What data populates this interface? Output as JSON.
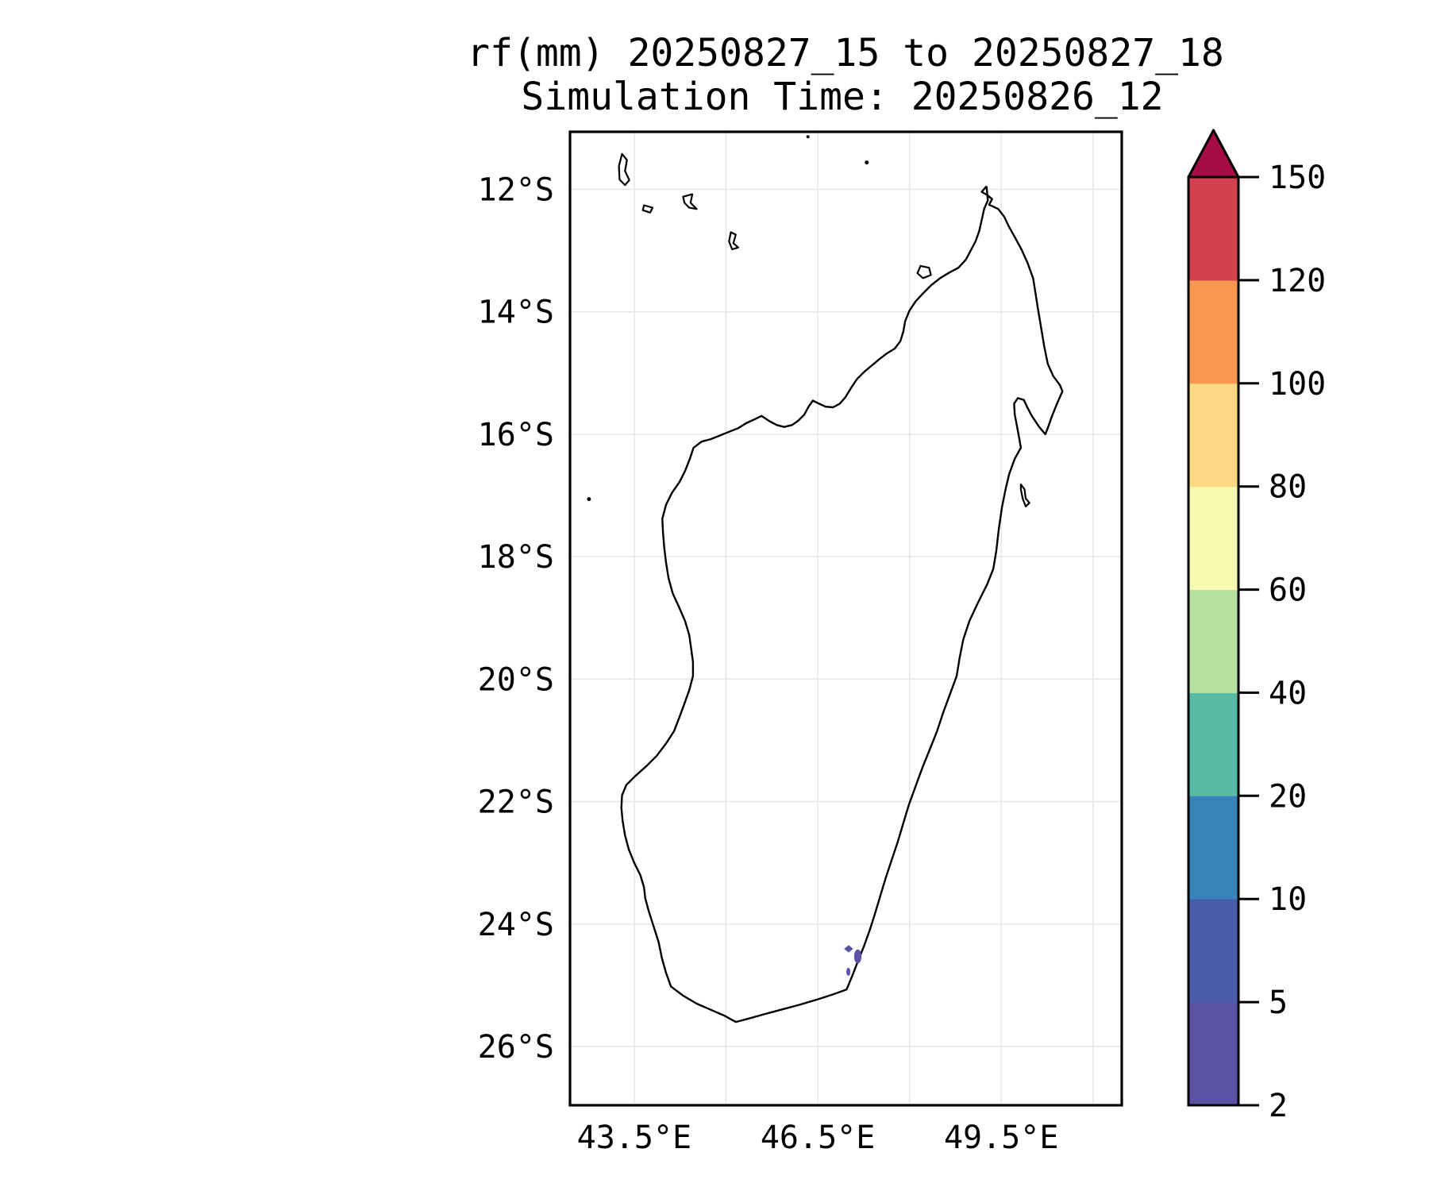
{
  "title": {
    "line1": "rf(mm) 20250827_15 to 20250827_18",
    "line2": "Simulation Time: 20250826_12"
  },
  "axes": {
    "lat_ticks": [
      {
        "label": "12°S",
        "lat": 12
      },
      {
        "label": "14°S",
        "lat": 14
      },
      {
        "label": "16°S",
        "lat": 16
      },
      {
        "label": "18°S",
        "lat": 18
      },
      {
        "label": "20°S",
        "lat": 20
      },
      {
        "label": "22°S",
        "lat": 22
      },
      {
        "label": "24°S",
        "lat": 24
      },
      {
        "label": "26°S",
        "lat": 26
      }
    ],
    "lon_ticks": [
      {
        "label": "43.5°E",
        "lon": 43.5
      },
      {
        "label": "46.5°E",
        "lon": 46.5
      },
      {
        "label": "49.5°E",
        "lon": 49.5
      }
    ],
    "lat_gridlines": [
      12,
      14,
      16,
      18,
      20,
      22,
      24,
      26
    ],
    "lon_gridlines": [
      43.5,
      45,
      46.5,
      48,
      49.5,
      51
    ]
  },
  "map_extent": {
    "lon_min": 42.45,
    "lon_max": 51.47,
    "lat_min": 11.06,
    "lat_max": 26.96
  },
  "style_colors": {
    "coastline": "#000000",
    "gridline": "#e6e6e6",
    "frame": "#000000",
    "background": "#ffffff"
  },
  "colorbar": {
    "tick_labels": [
      "2",
      "5",
      "10",
      "20",
      "40",
      "60",
      "80",
      "100",
      "120",
      "150"
    ],
    "band_colors": [
      "#5b51a5",
      "#4a5dac",
      "#3a82ba",
      "#57bba5",
      "#b5df9e",
      "#f5fab0",
      "#fdd884",
      "#f9964f",
      "#d4414e"
    ],
    "extend_max_color": "#a60c44",
    "extend": "max"
  },
  "chart_data": {
    "type": "heatmap",
    "title": "rf(mm) 20250827_15 to 20250827_18",
    "subtitle": "Simulation Time: 20250826_12",
    "units": "mm",
    "scale_boundaries": [
      2,
      5,
      10,
      20,
      40,
      60,
      80,
      100,
      120,
      150
    ],
    "legend_position": "right",
    "grid": true,
    "xlim": [
      42.45,
      51.47
    ],
    "ylim": [
      26.96,
      11.06
    ],
    "rain_patches": [
      {
        "lon": 47.005,
        "lat": 24.405,
        "shape": "diamond",
        "rx_deg": 0.075,
        "ry_deg": 0.06,
        "value_range": "2-5",
        "band_index": 0
      },
      {
        "lon": 47.155,
        "lat": 24.53,
        "shape": "ellipse",
        "rx_deg": 0.06,
        "ry_deg": 0.115,
        "value_range": "2-5",
        "band_index": 0
      },
      {
        "lon": 47.0,
        "lat": 24.78,
        "shape": "ellipse",
        "rx_deg": 0.033,
        "ry_deg": 0.066,
        "value_range": "2-5",
        "band_index": 0
      }
    ]
  },
  "geography": {
    "madagascar_main": [
      [
        49.26,
        11.95
      ],
      [
        49.18,
        12.04
      ],
      [
        49.28,
        12.1
      ],
      [
        49.35,
        12.16
      ],
      [
        49.3,
        12.25
      ],
      [
        49.45,
        12.32
      ],
      [
        49.55,
        12.45
      ],
      [
        49.62,
        12.6
      ],
      [
        49.72,
        12.78
      ],
      [
        49.83,
        12.98
      ],
      [
        49.93,
        13.2
      ],
      [
        50.02,
        13.45
      ],
      [
        50.06,
        13.7
      ],
      [
        50.1,
        13.95
      ],
      [
        50.15,
        14.25
      ],
      [
        50.2,
        14.55
      ],
      [
        50.26,
        14.85
      ],
      [
        50.35,
        15.05
      ],
      [
        50.46,
        15.2
      ],
      [
        50.5,
        15.3
      ],
      [
        50.42,
        15.48
      ],
      [
        50.33,
        15.7
      ],
      [
        50.26,
        15.9
      ],
      [
        50.22,
        16.0
      ],
      [
        50.12,
        15.88
      ],
      [
        50.0,
        15.7
      ],
      [
        49.92,
        15.55
      ],
      [
        49.87,
        15.44
      ],
      [
        49.77,
        15.41
      ],
      [
        49.71,
        15.5
      ],
      [
        49.72,
        15.68
      ],
      [
        49.76,
        15.88
      ],
      [
        49.8,
        16.1
      ],
      [
        49.82,
        16.22
      ],
      [
        49.72,
        16.4
      ],
      [
        49.63,
        16.65
      ],
      [
        49.57,
        16.9
      ],
      [
        49.51,
        17.2
      ],
      [
        49.46,
        17.55
      ],
      [
        49.42,
        17.9
      ],
      [
        49.37,
        18.2
      ],
      [
        49.27,
        18.45
      ],
      [
        49.12,
        18.75
      ],
      [
        48.98,
        19.05
      ],
      [
        48.88,
        19.35
      ],
      [
        48.82,
        19.65
      ],
      [
        48.77,
        19.95
      ],
      [
        48.66,
        20.25
      ],
      [
        48.55,
        20.55
      ],
      [
        48.45,
        20.85
      ],
      [
        48.33,
        21.15
      ],
      [
        48.21,
        21.45
      ],
      [
        48.1,
        21.75
      ],
      [
        47.99,
        22.05
      ],
      [
        47.9,
        22.35
      ],
      [
        47.81,
        22.65
      ],
      [
        47.71,
        22.95
      ],
      [
        47.61,
        23.25
      ],
      [
        47.52,
        23.55
      ],
      [
        47.43,
        23.85
      ],
      [
        47.35,
        24.1
      ],
      [
        47.26,
        24.35
      ],
      [
        47.16,
        24.6
      ],
      [
        47.07,
        24.83
      ],
      [
        47.0,
        25.0
      ],
      [
        46.97,
        25.07
      ],
      [
        46.75,
        25.15
      ],
      [
        46.5,
        25.23
      ],
      [
        46.2,
        25.32
      ],
      [
        45.9,
        25.4
      ],
      [
        45.6,
        25.48
      ],
      [
        45.35,
        25.55
      ],
      [
        45.16,
        25.6
      ],
      [
        44.98,
        25.5
      ],
      [
        44.75,
        25.4
      ],
      [
        44.52,
        25.3
      ],
      [
        44.3,
        25.17
      ],
      [
        44.1,
        25.02
      ],
      [
        44.02,
        24.8
      ],
      [
        43.95,
        24.55
      ],
      [
        43.9,
        24.3
      ],
      [
        43.82,
        24.05
      ],
      [
        43.74,
        23.8
      ],
      [
        43.68,
        23.58
      ],
      [
        43.66,
        23.4
      ],
      [
        43.6,
        23.2
      ],
      [
        43.5,
        23.0
      ],
      [
        43.41,
        22.78
      ],
      [
        43.35,
        22.55
      ],
      [
        43.31,
        22.32
      ],
      [
        43.29,
        22.1
      ],
      [
        43.3,
        21.9
      ],
      [
        43.37,
        21.73
      ],
      [
        43.52,
        21.58
      ],
      [
        43.7,
        21.42
      ],
      [
        43.87,
        21.25
      ],
      [
        44.02,
        21.05
      ],
      [
        44.15,
        20.85
      ],
      [
        44.24,
        20.62
      ],
      [
        44.32,
        20.4
      ],
      [
        44.4,
        20.18
      ],
      [
        44.46,
        19.95
      ],
      [
        44.46,
        19.72
      ],
      [
        44.43,
        19.5
      ],
      [
        44.4,
        19.28
      ],
      [
        44.33,
        19.05
      ],
      [
        44.23,
        18.82
      ],
      [
        44.13,
        18.6
      ],
      [
        44.06,
        18.35
      ],
      [
        44.02,
        18.1
      ],
      [
        43.99,
        17.85
      ],
      [
        43.97,
        17.6
      ],
      [
        43.96,
        17.38
      ],
      [
        44.02,
        17.15
      ],
      [
        44.12,
        16.95
      ],
      [
        44.24,
        16.78
      ],
      [
        44.33,
        16.6
      ],
      [
        44.41,
        16.4
      ],
      [
        44.47,
        16.22
      ],
      [
        44.6,
        16.12
      ],
      [
        44.75,
        16.08
      ],
      [
        44.9,
        16.02
      ],
      [
        45.05,
        15.96
      ],
      [
        45.2,
        15.9
      ],
      [
        45.33,
        15.82
      ],
      [
        45.46,
        15.76
      ],
      [
        45.58,
        15.7
      ],
      [
        45.7,
        15.78
      ],
      [
        45.83,
        15.85
      ],
      [
        45.95,
        15.88
      ],
      [
        46.08,
        15.85
      ],
      [
        46.18,
        15.78
      ],
      [
        46.28,
        15.68
      ],
      [
        46.35,
        15.55
      ],
      [
        46.42,
        15.45
      ],
      [
        46.52,
        15.5
      ],
      [
        46.63,
        15.55
      ],
      [
        46.75,
        15.56
      ],
      [
        46.86,
        15.5
      ],
      [
        46.95,
        15.4
      ],
      [
        47.04,
        15.25
      ],
      [
        47.14,
        15.1
      ],
      [
        47.26,
        14.98
      ],
      [
        47.38,
        14.88
      ],
      [
        47.5,
        14.78
      ],
      [
        47.63,
        14.68
      ],
      [
        47.76,
        14.6
      ],
      [
        47.85,
        14.48
      ],
      [
        47.9,
        14.32
      ],
      [
        47.93,
        14.15
      ],
      [
        48.0,
        13.98
      ],
      [
        48.1,
        13.83
      ],
      [
        48.22,
        13.7
      ],
      [
        48.35,
        13.57
      ],
      [
        48.5,
        13.45
      ],
      [
        48.65,
        13.36
      ],
      [
        48.8,
        13.28
      ],
      [
        48.92,
        13.15
      ],
      [
        49.0,
        13.0
      ],
      [
        49.08,
        12.85
      ],
      [
        49.14,
        12.68
      ],
      [
        49.18,
        12.5
      ],
      [
        49.22,
        12.32
      ],
      [
        49.28,
        12.18
      ],
      [
        49.26,
        11.95
      ]
    ],
    "islands": {
      "grande_comore": [
        [
          43.3,
          11.42
        ],
        [
          43.38,
          11.52
        ],
        [
          43.35,
          11.7
        ],
        [
          43.42,
          11.85
        ],
        [
          43.35,
          11.93
        ],
        [
          43.26,
          11.84
        ],
        [
          43.25,
          11.62
        ],
        [
          43.3,
          11.42
        ]
      ],
      "moheli": [
        [
          43.66,
          12.26
        ],
        [
          43.8,
          12.3
        ],
        [
          43.76,
          12.38
        ],
        [
          43.64,
          12.34
        ],
        [
          43.66,
          12.26
        ]
      ],
      "anjouan": [
        [
          44.3,
          12.12
        ],
        [
          44.45,
          12.08
        ],
        [
          44.42,
          12.22
        ],
        [
          44.52,
          12.32
        ],
        [
          44.4,
          12.3
        ],
        [
          44.32,
          12.22
        ],
        [
          44.3,
          12.12
        ]
      ],
      "mayotte": [
        [
          45.08,
          12.7
        ],
        [
          45.16,
          12.74
        ],
        [
          45.12,
          12.88
        ],
        [
          45.2,
          12.95
        ],
        [
          45.1,
          12.98
        ],
        [
          45.05,
          12.85
        ],
        [
          45.08,
          12.7
        ]
      ],
      "nosy_be": [
        [
          48.18,
          13.25
        ],
        [
          48.32,
          13.28
        ],
        [
          48.35,
          13.4
        ],
        [
          48.22,
          13.45
        ],
        [
          48.13,
          13.37
        ],
        [
          48.18,
          13.25
        ]
      ],
      "sainte_marie": [
        [
          49.82,
          16.82
        ],
        [
          49.88,
          16.9
        ],
        [
          49.9,
          17.05
        ],
        [
          49.96,
          17.12
        ],
        [
          49.9,
          17.18
        ],
        [
          49.85,
          17.05
        ],
        [
          49.82,
          16.9
        ],
        [
          49.82,
          16.82
        ]
      ]
    },
    "islet_dots": [
      {
        "lon": 47.3,
        "lat": 11.56,
        "r": 2.5
      },
      {
        "lon": 46.34,
        "lat": 11.14,
        "r": 2.0
      },
      {
        "lon": 42.76,
        "lat": 17.06,
        "r": 2.5
      }
    ]
  }
}
